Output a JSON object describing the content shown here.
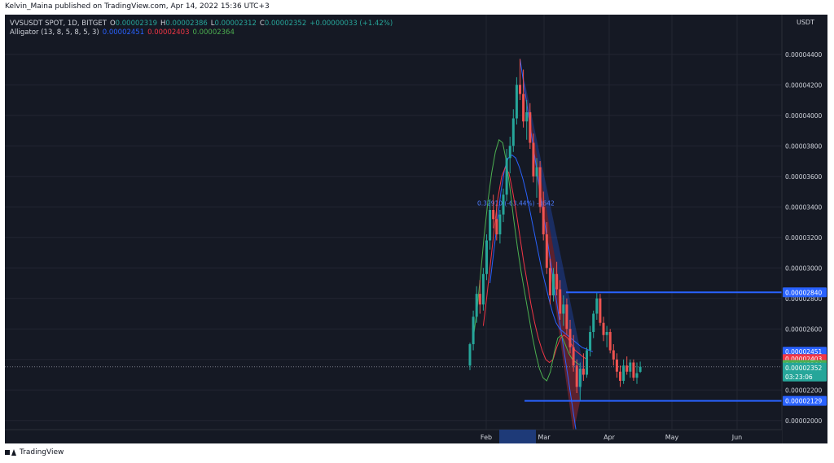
{
  "header": {
    "published_by": "Kelvin_Maina published on TradingView.com, Apr 14, 2022 15:36 UTC+3"
  },
  "legend": {
    "symbol": "VVSUSDT SPOT, 1D, BITGET",
    "o_label": "O",
    "o_value": "0.00002319",
    "h_label": "H",
    "h_value": "0.00002386",
    "l_label": "L",
    "l_value": "0.00002312",
    "c_label": "C",
    "c_value": "0.00002352",
    "change": "+0.00000033 (+1.42%)",
    "indicator": "Alligator (13, 8, 5, 8, 5, 3)",
    "jaw": "0.00002451",
    "teeth": "0.00002403",
    "lips": "0.00002364"
  },
  "colors": {
    "background": "#151924",
    "grid": "#232632",
    "up": "#26a69a",
    "down": "#ef5350",
    "jaw": "#2962ff",
    "teeth": "#f23645",
    "lips": "#4caf50",
    "level": "#2962ff"
  },
  "footer": {
    "brand": "TradingView",
    "logo_icon": "tradingview-logo-icon"
  },
  "chart_data": {
    "type": "line",
    "price_axis_title": "USDT",
    "price_ticks": [
      "0.00002000",
      "0.00002200",
      "0.00002400",
      "0.00002600",
      "0.00002800",
      "0.00003000",
      "0.00003200",
      "0.00003400",
      "0.00003600",
      "0.00003800",
      "0.00004000",
      "0.00004200",
      "0.00004400"
    ],
    "time_ticks": [
      "Feb",
      "Mar",
      "Apr",
      "May",
      "Jun"
    ],
    "ylim": [
      1.94e-05,
      4.66e-05
    ],
    "grid": true,
    "levels": [
      {
        "value": 2.84e-05,
        "label": "0.00002840"
      },
      {
        "value": 2.129e-05,
        "label": "0.00002129"
      }
    ],
    "price_labels": [
      {
        "value": 2.451e-05,
        "text": "0.00002451",
        "series": "jaw"
      },
      {
        "value": 2.403e-05,
        "text": "0.00002403",
        "series": "teeth"
      },
      {
        "value": 2.364e-05,
        "text": "0.00002364",
        "series": "lips"
      },
      {
        "value": 2.352e-05,
        "text": "0.00002352",
        "series": "close"
      }
    ],
    "countdown": "03:23:06",
    "measure_text": "0.32910 (-63.44%) -0642",
    "last_close": 2.352e-05,
    "candles": [
      [
        2.36e-05,
        2.51e-05,
        2.33e-05,
        2.5e-05
      ],
      [
        2.5e-05,
        2.72e-05,
        2.46e-05,
        2.68e-05
      ],
      [
        2.68e-05,
        2.88e-05,
        2.64e-05,
        2.83e-05
      ],
      [
        2.83e-05,
        2.92e-05,
        2.7e-05,
        2.76e-05
      ],
      [
        2.76e-05,
        3e-05,
        2.72e-05,
        2.96e-05
      ],
      [
        2.96e-05,
        3.22e-05,
        2.92e-05,
        3.18e-05
      ],
      [
        3.18e-05,
        3.45e-05,
        3.12e-05,
        3.38e-05
      ],
      [
        3.38e-05,
        3.48e-05,
        3.26e-05,
        3.32e-05
      ],
      [
        3.32e-05,
        3.42e-05,
        3.18e-05,
        3.22e-05
      ],
      [
        3.22e-05,
        3.38e-05,
        3.16e-05,
        3.35e-05
      ],
      [
        3.35e-05,
        3.52e-05,
        3.3e-05,
        3.48e-05
      ],
      [
        3.48e-05,
        3.78e-05,
        3.44e-05,
        3.72e-05
      ],
      [
        3.72e-05,
        3.86e-05,
        3.62e-05,
        3.8e-05
      ],
      [
        3.8e-05,
        4.04e-05,
        3.76e-05,
        3.98e-05
      ],
      [
        3.98e-05,
        4.25e-05,
        3.94e-05,
        4.2e-05
      ],
      [
        4.2e-05,
        4.37e-05,
        4.1e-05,
        4.14e-05
      ],
      [
        4.14e-05,
        4.3e-05,
        3.92e-05,
        3.96e-05
      ],
      [
        3.96e-05,
        4.1e-05,
        3.84e-05,
        4.02e-05
      ],
      [
        4.02e-05,
        4.08e-05,
        3.78e-05,
        3.82e-05
      ],
      [
        3.82e-05,
        3.88e-05,
        3.56e-05,
        3.6e-05
      ],
      [
        3.6e-05,
        3.72e-05,
        3.46e-05,
        3.66e-05
      ],
      [
        3.66e-05,
        3.7e-05,
        3.36e-05,
        3.4e-05
      ],
      [
        3.4e-05,
        3.5e-05,
        3.18e-05,
        3.22e-05
      ],
      [
        3.22e-05,
        3.3e-05,
        2.96e-05,
        3e-05
      ],
      [
        3e-05,
        3.06e-05,
        2.76e-05,
        2.82e-05
      ],
      [
        2.82e-05,
        3e-05,
        2.78e-05,
        2.96e-05
      ],
      [
        2.96e-05,
        3.04e-05,
        2.82e-05,
        2.86e-05
      ],
      [
        2.86e-05,
        2.92e-05,
        2.66e-05,
        2.7e-05
      ],
      [
        2.7e-05,
        2.82e-05,
        2.62e-05,
        2.76e-05
      ],
      [
        2.76e-05,
        2.8e-05,
        2.56e-05,
        2.6e-05
      ],
      [
        2.6e-05,
        2.66e-05,
        2.44e-05,
        2.48e-05
      ],
      [
        2.48e-05,
        2.56e-05,
        2.32e-05,
        2.36e-05
      ],
      [
        2.36e-05,
        2.4e-05,
        2.18e-05,
        2.22e-05
      ],
      [
        2.22e-05,
        2.38e-05,
        2.13e-05,
        2.34e-05
      ],
      [
        2.34e-05,
        2.44e-05,
        2.26e-05,
        2.3e-05
      ],
      [
        2.3e-05,
        2.48e-05,
        2.28e-05,
        2.46e-05
      ],
      [
        2.46e-05,
        2.62e-05,
        2.42e-05,
        2.58e-05
      ],
      [
        2.58e-05,
        2.72e-05,
        2.54e-05,
        2.7e-05
      ],
      [
        2.7e-05,
        2.84e-05,
        2.66e-05,
        2.8e-05
      ],
      [
        2.8e-05,
        2.83e-05,
        2.62e-05,
        2.64e-05
      ],
      [
        2.64e-05,
        2.68e-05,
        2.52e-05,
        2.56e-05
      ],
      [
        2.56e-05,
        2.62e-05,
        2.48e-05,
        2.58e-05
      ],
      [
        2.58e-05,
        2.6e-05,
        2.44e-05,
        2.46e-05
      ],
      [
        2.46e-05,
        2.5e-05,
        2.36e-05,
        2.4e-05
      ],
      [
        2.4e-05,
        2.44e-05,
        2.28e-05,
        2.32e-05
      ],
      [
        2.32e-05,
        2.36e-05,
        2.22e-05,
        2.26e-05
      ],
      [
        2.26e-05,
        2.4e-05,
        2.24e-05,
        2.36e-05
      ],
      [
        2.36e-05,
        2.42e-05,
        2.3e-05,
        2.32e-05
      ],
      [
        2.32e-05,
        2.4e-05,
        2.28e-05,
        2.38e-05
      ],
      [
        2.38e-05,
        2.4e-05,
        2.26e-05,
        2.28e-05
      ],
      [
        2.28e-05,
        2.38e-05,
        2.24e-05,
        2.31e-05
      ],
      [
        2.319e-05,
        2.386e-05,
        2.312e-05,
        2.352e-05
      ]
    ],
    "series": [
      {
        "name": "jaw",
        "values": [
          2.9e-05,
          3.1e-05,
          3.3e-05,
          3.5e-05,
          3.65e-05,
          3.72e-05,
          3.74e-05,
          3.72e-05,
          3.66e-05,
          3.58e-05,
          3.48e-05,
          3.36e-05,
          3.24e-05,
          3.12e-05,
          3e-05,
          2.9e-05,
          2.8e-05,
          2.71e-05,
          2.64e-05,
          2.6e-05,
          2.58e-05,
          2.56e-05,
          2.54e-05,
          2.52e-05,
          2.5e-05,
          2.48e-05,
          2.47e-05,
          2.46e-05,
          2.451e-05
        ]
      },
      {
        "name": "teeth",
        "values": [
          2.62e-05,
          2.82e-05,
          3.04e-05,
          3.26e-05,
          3.46e-05,
          3.6e-05,
          3.66e-05,
          3.62e-05,
          3.5e-05,
          3.36e-05,
          3.2e-05,
          3.04e-05,
          2.9e-05,
          2.76e-05,
          2.64e-05,
          2.54e-05,
          2.46e-05,
          2.4e-05,
          2.38e-05,
          2.4e-05,
          2.48e-05,
          2.54e-05,
          2.56e-05,
          2.54e-05,
          2.5e-05,
          2.46e-05,
          2.44e-05,
          2.42e-05,
          2.403e-05
        ]
      },
      {
        "name": "lips",
        "values": [
          2.54e-05,
          2.72e-05,
          2.96e-05,
          3.22e-05,
          3.44e-05,
          3.62e-05,
          3.76e-05,
          3.84e-05,
          3.82e-05,
          3.7e-05,
          3.52e-05,
          3.32e-05,
          3.14e-05,
          2.98e-05,
          2.84e-05,
          2.7e-05,
          2.56e-05,
          2.44e-05,
          2.34e-05,
          2.28e-05,
          2.26e-05,
          2.32e-05,
          2.44e-05,
          2.54e-05,
          2.56e-05,
          2.5e-05,
          2.44e-05,
          2.4e-05,
          2.38e-05,
          2.364e-05
        ]
      }
    ]
  }
}
